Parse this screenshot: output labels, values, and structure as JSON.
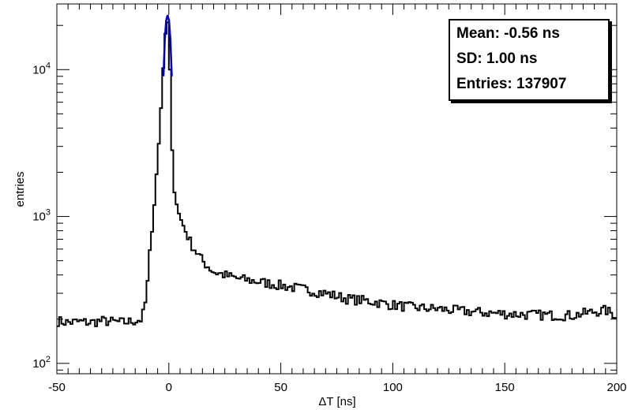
{
  "chart_data": {
    "type": "histogram",
    "xlabel": "ΔT [ns]",
    "ylabel": "entries",
    "xlim": [
      -50,
      200
    ],
    "ylim": [
      85,
      28000
    ],
    "yscale": "log",
    "grid": false,
    "x_ticks": [
      -50,
      0,
      50,
      100,
      150,
      200
    ],
    "y_tick_labels": [
      {
        "value": 100,
        "base": "10",
        "exp": "2"
      },
      {
        "value": 1000,
        "base": "10",
        "exp": "3"
      },
      {
        "value": 10000,
        "base": "10",
        "exp": "4"
      }
    ],
    "colors": {
      "histogram": "#000000",
      "fit": "#0000cc"
    },
    "stats": {
      "mean": "Mean: -0.56 ns",
      "sd": "SD: 1.00 ns",
      "entries": "Entries: 137907"
    },
    "histogram_points": [
      [
        -50,
        195
      ],
      [
        -45,
        190
      ],
      [
        -40,
        192
      ],
      [
        -35,
        190
      ],
      [
        -30,
        195
      ],
      [
        -25,
        192
      ],
      [
        -20,
        190
      ],
      [
        -15,
        195
      ],
      [
        -12,
        200
      ],
      [
        -10,
        280
      ],
      [
        -8,
        700
      ],
      [
        -6,
        1500
      ],
      [
        -4,
        4000
      ],
      [
        -2,
        14000
      ],
      [
        -1,
        22000
      ],
      [
        0,
        20000
      ],
      [
        1,
        5000
      ],
      [
        2,
        1600
      ],
      [
        4,
        1100
      ],
      [
        6,
        900
      ],
      [
        10,
        650
      ],
      [
        15,
        500
      ],
      [
        20,
        420
      ],
      [
        30,
        380
      ],
      [
        40,
        360
      ],
      [
        50,
        340
      ],
      [
        60,
        320
      ],
      [
        70,
        300
      ],
      [
        80,
        275
      ],
      [
        90,
        265
      ],
      [
        100,
        250
      ],
      [
        110,
        240
      ],
      [
        120,
        235
      ],
      [
        130,
        228
      ],
      [
        140,
        222
      ],
      [
        150,
        218
      ],
      [
        160,
        215
      ],
      [
        170,
        213
      ],
      [
        180,
        212
      ],
      [
        190,
        225
      ],
      [
        195,
        230
      ],
      [
        200,
        212
      ]
    ],
    "fit_points": [
      [
        -2.4,
        9000
      ],
      [
        -1.8,
        16000
      ],
      [
        -1.2,
        21500
      ],
      [
        -0.56,
        23500
      ],
      [
        0.1,
        21500
      ],
      [
        0.7,
        16000
      ],
      [
        1.3,
        9000
      ]
    ]
  }
}
